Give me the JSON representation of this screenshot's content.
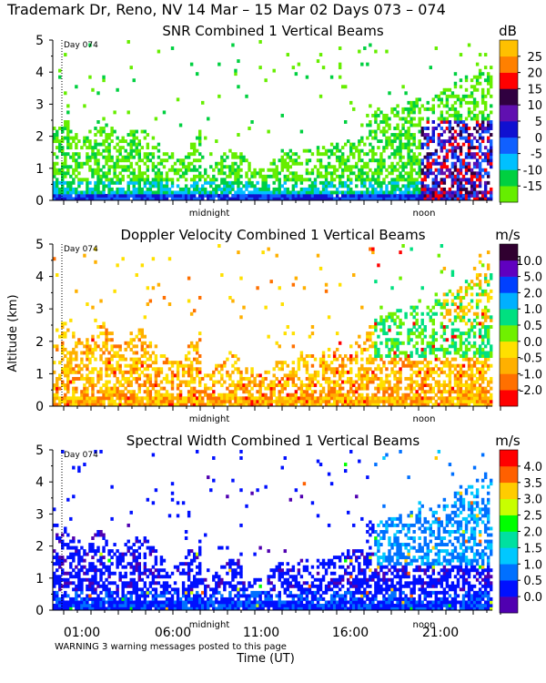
{
  "header": {
    "title": "Trademark Dr, Reno, NV  14 Mar – 15 Mar 02 Days 073 – 074"
  },
  "footer": {
    "warning": "WARNING  3 warning messages posted to this page"
  },
  "colors": {
    "cb_snr": [
      "#66ee00",
      "#00d040",
      "#00c0ff",
      "#1060ff",
      "#1010d0",
      "#6010b0",
      "#300040",
      "#ff0000",
      "#ff8000",
      "#ffc000"
    ],
    "cb_dop": [
      "#ff0000",
      "#ff7000",
      "#ffb000",
      "#ffe000",
      "#70f000",
      "#00e080",
      "#00b0ff",
      "#0040ff",
      "#6000c0",
      "#300030"
    ],
    "cb_sw": [
      "#5000b0",
      "#0010ff",
      "#0070ff",
      "#00c8ff",
      "#00e0a0",
      "#00ff00",
      "#c8ff00",
      "#ffcc00",
      "#ff6000",
      "#ff0000"
    ]
  },
  "chart_data": [
    {
      "type": "heatmap",
      "title": "SNR Combined 1 Vertical Beams",
      "ylabel": "",
      "xlabel": "",
      "unit": "dB",
      "ylim": [
        0,
        5
      ],
      "y_ticks": [
        0,
        1,
        2,
        3,
        4,
        5
      ],
      "day_marker": "Day 074",
      "day_label_x": [
        "midnight",
        "noon"
      ],
      "colorbar_labels": [
        "-15",
        "-10",
        "-5",
        "0",
        "5",
        "10",
        "15",
        "20",
        "25"
      ]
    },
    {
      "type": "heatmap",
      "title": "Doppler Velocity Combined 1 Vertical Beams",
      "ylabel": "Altitude (km)",
      "xlabel": "",
      "unit": "m/s",
      "ylim": [
        0,
        5
      ],
      "y_ticks": [
        0,
        1,
        2,
        3,
        4,
        5
      ],
      "day_marker": "Day 074",
      "day_label_x": [
        "midnight",
        "noon"
      ],
      "colorbar_labels": [
        "-2.0",
        "-1.0",
        "-0.5",
        "0.0",
        "0.5",
        "1.0",
        "2.0",
        "5.0",
        "10.0"
      ]
    },
    {
      "type": "heatmap",
      "title": "Spectral Width Combined 1 Vertical Beams",
      "ylabel": "",
      "xlabel": "Time (UT)",
      "unit": "m/s",
      "ylim": [
        0,
        5
      ],
      "y_ticks": [
        0,
        1,
        2,
        3,
        4,
        5
      ],
      "day_marker": "Day 074",
      "day_label_x": [
        "midnight",
        "noon"
      ],
      "x_ticks": [
        "01:00",
        "06:00",
        "11:00",
        "16:00",
        "21:00"
      ],
      "colorbar_labels": [
        "0.0",
        "0.5",
        "1.0",
        "1.5",
        "2.0",
        "2.5",
        "3.0",
        "3.5",
        "4.0"
      ]
    }
  ]
}
